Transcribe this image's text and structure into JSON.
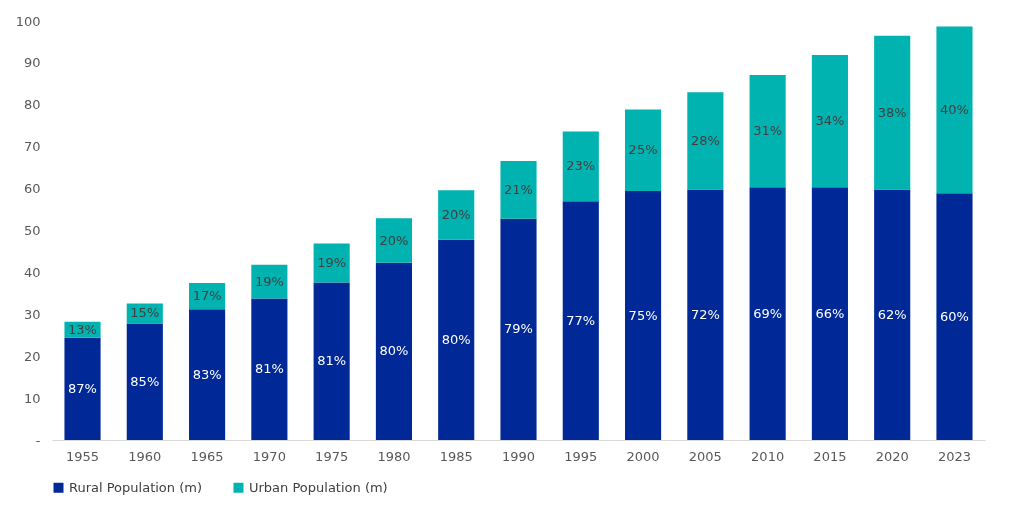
{
  "chart_data": {
    "type": "bar",
    "stacked": true,
    "categories": [
      "1955",
      "1960",
      "1965",
      "1970",
      "1975",
      "1980",
      "1985",
      "1990",
      "1995",
      "2000",
      "2005",
      "2010",
      "2015",
      "2020",
      "2023"
    ],
    "series": [
      {
        "name": "Rural Population (m)",
        "color": "#002896",
        "values": [
          24.4,
          27.8,
          31.2,
          33.8,
          37.6,
          42.3,
          47.8,
          52.8,
          57.0,
          59.4,
          59.8,
          60.3,
          60.3,
          59.8,
          58.9
        ]
      },
      {
        "name": "Urban Population (m)",
        "color": "#00b2b0",
        "values": [
          3.8,
          4.8,
          6.3,
          8.0,
          9.3,
          10.6,
          11.8,
          13.8,
          16.6,
          19.5,
          23.2,
          26.8,
          31.6,
          36.7,
          39.8
        ]
      }
    ],
    "annotations": [
      "87%",
      "85%",
      "83%",
      "81%",
      "81%",
      "80%",
      "80%",
      "79%",
      "77%",
      "75%",
      "72%",
      "69%",
      "66%",
      "62%",
      "60%",
      "13%",
      "15%",
      "17%",
      "19%",
      "19%",
      "20%",
      "20%",
      "21%",
      "23%",
      "25%",
      "28%",
      "31%",
      "34%",
      "38%",
      "40%"
    ],
    "ylim": [
      0,
      100
    ],
    "yticks": [
      {
        "value": 0,
        "label": "-"
      },
      10,
      20,
      30,
      40,
      50,
      60,
      70,
      80,
      90,
      100
    ],
    "grid": false,
    "legend": "bottom"
  }
}
